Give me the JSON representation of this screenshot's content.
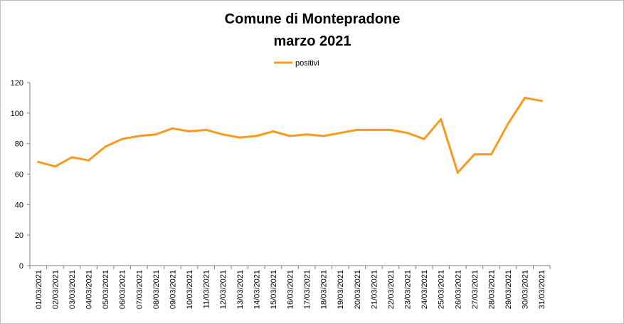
{
  "chart_data": {
    "type": "line",
    "title": [
      "Comune di Montepradone",
      "marzo 2021"
    ],
    "xlabel": "",
    "ylabel": "",
    "ylim": [
      0,
      120
    ],
    "yticks": [
      0,
      20,
      40,
      60,
      80,
      100,
      120
    ],
    "grid": false,
    "legend_position": "top-center",
    "categories": [
      "01/03/2021",
      "02/03/2021",
      "03/03/2021",
      "04/03/2021",
      "05/03/2021",
      "06/03/2021",
      "07/03/2021",
      "08/03/2021",
      "09/03/2021",
      "10/03/2021",
      "11/03/2021",
      "12/03/2021",
      "13/03/2021",
      "14/03/2021",
      "15/03/2021",
      "16/03/2021",
      "17/03/2021",
      "18/03/2021",
      "19/03/2021",
      "20/03/2021",
      "21/03/2021",
      "22/03/2021",
      "23/03/2021",
      "24/03/2021",
      "25/03/2021",
      "26/03/2021",
      "27/03/2021",
      "28/03/2021",
      "29/03/2021",
      "30/03/2021",
      "31/03/2021"
    ],
    "series": [
      {
        "name": "positivi",
        "color": "#f79a1e",
        "values": [
          68,
          65,
          71,
          69,
          78,
          83,
          85,
          86,
          90,
          88,
          89,
          86,
          84,
          85,
          88,
          85,
          86,
          85,
          87,
          89,
          89,
          89,
          87,
          83,
          96,
          61,
          73,
          73,
          93,
          110,
          108
        ]
      }
    ]
  }
}
